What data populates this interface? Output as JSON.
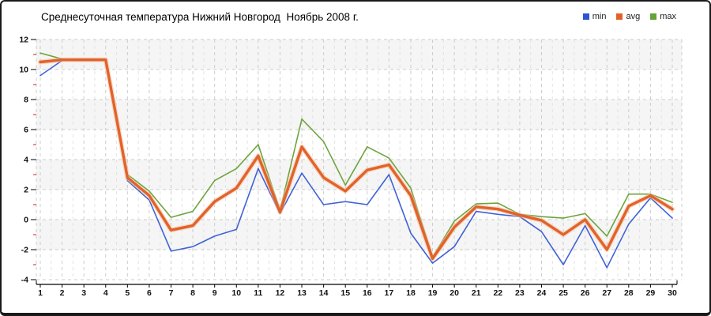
{
  "title": "Среднесуточная температура Нижний Новгород  Ноябрь 2008 г.",
  "legend": [
    {
      "label": "min",
      "color": "#2e55cf"
    },
    {
      "label": "avg",
      "color": "#e2622b"
    },
    {
      "label": "max",
      "color": "#64a336"
    }
  ],
  "chart_data": {
    "type": "line",
    "title": "Среднесуточная температура Нижний Новгород  Ноябрь 2008 г.",
    "xlabel": "",
    "ylabel": "",
    "x": [
      1,
      2,
      3,
      4,
      5,
      6,
      7,
      8,
      9,
      10,
      11,
      12,
      13,
      14,
      15,
      16,
      17,
      18,
      19,
      20,
      21,
      22,
      23,
      24,
      25,
      26,
      27,
      28,
      29,
      30
    ],
    "series": [
      {
        "name": "min",
        "color": "#3f62d6",
        "width": 1.6,
        "values": [
          9.6,
          10.6,
          10.6,
          10.6,
          2.6,
          1.3,
          -2.1,
          -1.8,
          -1.1,
          -0.65,
          3.4,
          0.4,
          3.1,
          1.0,
          1.2,
          1.0,
          3.0,
          -0.9,
          -2.9,
          -1.8,
          0.55,
          0.35,
          0.2,
          -0.8,
          -3.0,
          -0.4,
          -3.2,
          -0.3,
          1.45,
          0.1
        ]
      },
      {
        "name": "avg",
        "color": "#e2622b",
        "halo": "#f3bd97",
        "width": 3.4,
        "values": [
          10.5,
          10.65,
          10.65,
          10.65,
          2.8,
          1.6,
          -0.7,
          -0.4,
          1.2,
          2.1,
          4.25,
          0.5,
          4.85,
          2.8,
          1.9,
          3.3,
          3.65,
          1.6,
          -2.6,
          -0.5,
          0.85,
          0.7,
          0.3,
          -0.05,
          -1.0,
          0.0,
          -2.0,
          0.9,
          1.6,
          0.7
        ]
      },
      {
        "name": "max",
        "color": "#6da43c",
        "width": 1.6,
        "values": [
          11.1,
          10.7,
          10.7,
          10.7,
          3.0,
          1.9,
          0.15,
          0.55,
          2.6,
          3.4,
          5.0,
          0.6,
          6.7,
          5.2,
          2.3,
          4.85,
          4.1,
          2.1,
          -2.5,
          -0.1,
          1.05,
          1.1,
          0.35,
          0.2,
          0.1,
          0.4,
          -1.1,
          1.7,
          1.7,
          1.15
        ]
      }
    ],
    "ylim": [
      -4,
      12
    ],
    "ytick_step": 2,
    "grid": "dashed",
    "legend_position": "top-right",
    "style": {
      "band_colors": [
        "#f5f5f5",
        "#ffffff"
      ],
      "grid_color": "#cccccc",
      "minor_grid_color": "#e3e3e3",
      "axis_color": "#000000",
      "tick_label_color": "#111111",
      "minor_tick_color": "#cc2222"
    }
  }
}
